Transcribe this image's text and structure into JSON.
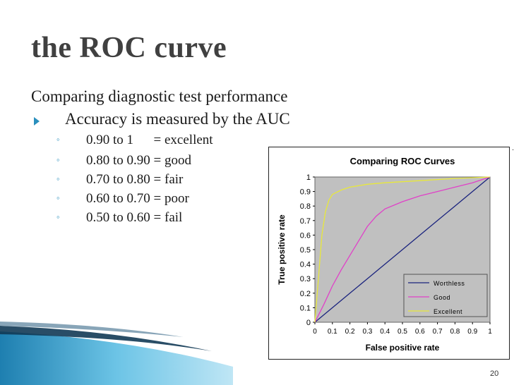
{
  "slide": {
    "title": "the ROC curve",
    "lead": "Comparing diagnostic test performance",
    "bullet": "Accuracy is measured by the AUC",
    "scale": [
      {
        "range": "0.90 to 1      = excellent"
      },
      {
        "range": "0.80 to 0.90 = good"
      },
      {
        "range": "0.70 to 0.80 = fair"
      },
      {
        "range": "0.60 to 0.70 = poor"
      },
      {
        "range": "0.50 to 0.60 = fail"
      }
    ],
    "page_number": "20",
    "stray_mark": "."
  },
  "colors": {
    "accent": "#2a8fbd",
    "plot_bg": "#c0c0c0",
    "worthless": "#1a237e",
    "good": "#e040c8",
    "excellent": "#e8e83a"
  },
  "chart_data": {
    "type": "line",
    "title": "Comparing ROC Curves",
    "xlabel": "False positive rate",
    "ylabel": "True positive rate",
    "xlim": [
      0,
      1
    ],
    "ylim": [
      0,
      1
    ],
    "xticks": [
      "0",
      "0.1",
      "0.2",
      "0.3",
      "0.4",
      "0.5",
      "0.6",
      "0.7",
      "0.8",
      "0.9",
      "1"
    ],
    "yticks": [
      "0",
      "0.1",
      "0.2",
      "0.3",
      "0.4",
      "0.5",
      "0.6",
      "0.7",
      "0.8",
      "0.9",
      "1"
    ],
    "grid": false,
    "legend_position": "bottom-right",
    "series": [
      {
        "name": "Worthless",
        "color": "#1a237e",
        "x": [
          0,
          0.1,
          0.2,
          0.3,
          0.4,
          0.5,
          0.6,
          0.7,
          0.8,
          0.9,
          1
        ],
        "y": [
          0,
          0.1,
          0.2,
          0.3,
          0.4,
          0.5,
          0.6,
          0.7,
          0.8,
          0.9,
          1
        ]
      },
      {
        "name": "Good",
        "color": "#e040c8",
        "x": [
          0,
          0.05,
          0.1,
          0.15,
          0.2,
          0.25,
          0.3,
          0.35,
          0.4,
          0.5,
          0.6,
          0.7,
          0.8,
          0.9,
          1
        ],
        "y": [
          0,
          0.12,
          0.25,
          0.36,
          0.46,
          0.56,
          0.66,
          0.73,
          0.78,
          0.83,
          0.87,
          0.9,
          0.93,
          0.96,
          1
        ]
      },
      {
        "name": "Excellent",
        "color": "#e8e83a",
        "x": [
          0,
          0.02,
          0.04,
          0.06,
          0.08,
          0.1,
          0.15,
          0.2,
          0.3,
          0.4,
          0.6,
          0.8,
          1
        ],
        "y": [
          0,
          0.3,
          0.6,
          0.76,
          0.84,
          0.88,
          0.91,
          0.93,
          0.95,
          0.96,
          0.975,
          0.99,
          1
        ]
      }
    ]
  }
}
